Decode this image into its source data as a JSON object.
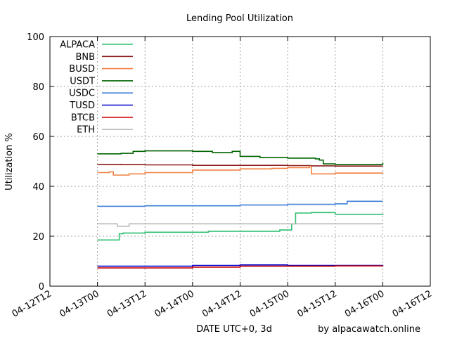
{
  "chart_data": {
    "type": "line",
    "title": "Lending Pool Utilization",
    "xlabel": "DATE UTC+0, 3d",
    "ylabel": "Utilization %",
    "credit": "by alpacawatch.online",
    "ylim": [
      0,
      100
    ],
    "yticks": [
      0,
      20,
      40,
      60,
      80,
      100
    ],
    "xlim": [
      "2021-04-12T12:00",
      "2021-04-16T12:00"
    ],
    "xticks": [
      "04-12T12",
      "04-13T00",
      "04-13T12",
      "04-14T00",
      "04-14T12",
      "04-15T00",
      "04-15T12",
      "04-16T00",
      "04-16T12"
    ],
    "grid": true,
    "legend_position": "top-left",
    "series": [
      {
        "name": "ALPACA",
        "color": "#2fbf71",
        "x": [
          "2021-04-13T00:00",
          "2021-04-13T05:00",
          "2021-04-13T05:30",
          "2021-04-13T06:30",
          "2021-04-13T12:00",
          "2021-04-14T04:00",
          "2021-04-14T20:00",
          "2021-04-14T22:00",
          "2021-04-15T01:00",
          "2021-04-15T02:00",
          "2021-04-15T06:00",
          "2021-04-15T12:00",
          "2021-04-16T00:00"
        ],
        "y": [
          18.5,
          18.5,
          21,
          21.3,
          21.6,
          22,
          22,
          22.5,
          25,
          29.3,
          29.5,
          28.8,
          28.5
        ]
      },
      {
        "name": "BNB",
        "color": "#8b1a1a",
        "x": [
          "2021-04-13T00:00",
          "2021-04-13T06:00",
          "2021-04-13T12:00",
          "2021-04-14T00:00",
          "2021-04-14T12:00",
          "2021-04-14T20:00",
          "2021-04-15T00:00",
          "2021-04-15T06:00",
          "2021-04-15T12:00",
          "2021-04-16T00:00"
        ],
        "y": [
          48.8,
          48.7,
          48.6,
          48.4,
          48.4,
          48.4,
          48.3,
          48.2,
          48.1,
          48.1
        ]
      },
      {
        "name": "BUSD",
        "color": "#f08040",
        "x": [
          "2021-04-13T00:00",
          "2021-04-13T03:00",
          "2021-04-13T04:00",
          "2021-04-13T08:00",
          "2021-04-13T12:00",
          "2021-04-14T00:00",
          "2021-04-14T12:00",
          "2021-04-14T20:00",
          "2021-04-15T00:00",
          "2021-04-15T05:30",
          "2021-04-15T06:00",
          "2021-04-15T12:00",
          "2021-04-16T00:00"
        ],
        "y": [
          45.5,
          45.8,
          44.5,
          45,
          45.5,
          46.5,
          47,
          47.2,
          47.5,
          48,
          45,
          45.3,
          45.2
        ]
      },
      {
        "name": "USDT",
        "color": "#006400",
        "x": [
          "2021-04-13T00:00",
          "2021-04-13T06:00",
          "2021-04-13T09:00",
          "2021-04-13T12:00",
          "2021-04-14T00:00",
          "2021-04-14T05:00",
          "2021-04-14T10:00",
          "2021-04-14T12:00",
          "2021-04-14T17:00",
          "2021-04-15T00:00",
          "2021-04-15T07:00",
          "2021-04-15T08:00",
          "2021-04-15T09:00",
          "2021-04-15T12:00",
          "2021-04-16T00:00"
        ],
        "y": [
          53,
          53.2,
          54,
          54.2,
          54,
          53.5,
          54,
          52,
          51.5,
          51.3,
          51,
          50.5,
          49,
          48.8,
          49.5
        ]
      },
      {
        "name": "USDC",
        "color": "#3f7fd8",
        "x": [
          "2021-04-13T00:00",
          "2021-04-13T12:00",
          "2021-04-14T00:00",
          "2021-04-14T12:00",
          "2021-04-15T00:00",
          "2021-04-15T12:00",
          "2021-04-15T15:00",
          "2021-04-16T00:00"
        ],
        "y": [
          32,
          32.2,
          32.2,
          32.5,
          32.8,
          33,
          34,
          34
        ]
      },
      {
        "name": "TUSD",
        "color": "#0000cc",
        "x": [
          "2021-04-13T00:00",
          "2021-04-13T12:00",
          "2021-04-14T00:00",
          "2021-04-14T12:00",
          "2021-04-15T00:00",
          "2021-04-15T12:00",
          "2021-04-16T00:00"
        ],
        "y": [
          8,
          8,
          8.3,
          8.5,
          8.3,
          8.3,
          8.2
        ]
      },
      {
        "name": "BTCB",
        "color": "#cc0000",
        "x": [
          "2021-04-13T00:00",
          "2021-04-13T12:00",
          "2021-04-14T00:00",
          "2021-04-14T12:00",
          "2021-04-15T00:00",
          "2021-04-15T12:00",
          "2021-04-16T00:00"
        ],
        "y": [
          7.3,
          7.3,
          7.6,
          8,
          8,
          8.1,
          8.2
        ]
      },
      {
        "name": "ETH",
        "color": "#b8b8b8",
        "x": [
          "2021-04-13T00:00",
          "2021-04-13T05:00",
          "2021-04-13T08:00",
          "2021-04-13T12:00",
          "2021-04-14T00:00",
          "2021-04-14T12:00",
          "2021-04-15T00:00",
          "2021-04-16T00:00"
        ],
        "y": [
          25,
          24,
          25,
          25,
          25,
          25,
          25,
          25
        ]
      }
    ]
  }
}
